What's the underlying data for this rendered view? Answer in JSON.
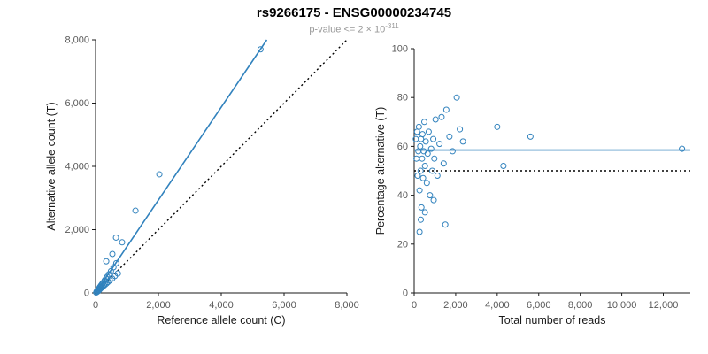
{
  "header": {
    "title": "rs9266175 - ENSG00000234745",
    "subtitle_text": "p-value <= 2 × 10",
    "subtitle_exponent": "-311"
  },
  "colors": {
    "accent_blue": "#3182bd",
    "identity_black": "#000000",
    "subtitle_gray": "#999999"
  },
  "chart_data": [
    {
      "type": "scatter",
      "title": "",
      "xlabel": "Reference allele count (C)",
      "ylabel": "Alternative allele count (T)",
      "xlim": [
        0,
        8000
      ],
      "ylim": [
        0,
        8000
      ],
      "xticks": [
        0,
        2000,
        4000,
        6000,
        8000
      ],
      "yticks": [
        0,
        2000,
        4000,
        6000,
        8000
      ],
      "grid": false,
      "legend": "none",
      "point_color": "#3182bd",
      "points": [
        [
          20,
          15
        ],
        [
          35,
          45
        ],
        [
          50,
          30
        ],
        [
          60,
          80
        ],
        [
          75,
          55
        ],
        [
          85,
          110
        ],
        [
          95,
          70
        ],
        [
          105,
          135
        ],
        [
          115,
          95
        ],
        [
          125,
          170
        ],
        [
          135,
          115
        ],
        [
          145,
          195
        ],
        [
          155,
          135
        ],
        [
          165,
          225
        ],
        [
          175,
          155
        ],
        [
          190,
          260
        ],
        [
          205,
          175
        ],
        [
          220,
          300
        ],
        [
          235,
          205
        ],
        [
          255,
          335
        ],
        [
          270,
          235
        ],
        [
          290,
          395
        ],
        [
          310,
          270
        ],
        [
          330,
          450
        ],
        [
          350,
          305
        ],
        [
          370,
          510
        ],
        [
          395,
          345
        ],
        [
          425,
          590
        ],
        [
          455,
          395
        ],
        [
          490,
          690
        ],
        [
          530,
          455
        ],
        [
          570,
          810
        ],
        [
          615,
          535
        ],
        [
          660,
          940
        ],
        [
          710,
          615
        ],
        [
          340,
          1000
        ],
        [
          535,
          1230
        ],
        [
          650,
          1750
        ],
        [
          845,
          1600
        ],
        [
          1270,
          2600
        ],
        [
          2030,
          3750
        ],
        [
          5250,
          7700
        ]
      ],
      "lines": [
        {
          "name": "fit-line",
          "style": "solid",
          "color": "#3182bd",
          "x1": 0,
          "y1": 0,
          "x2": 5450,
          "y2": 8000
        },
        {
          "name": "identity-line",
          "style": "dotted",
          "color": "#000000",
          "x1": 0,
          "y1": 0,
          "x2": 8000,
          "y2": 8000
        }
      ]
    },
    {
      "type": "scatter",
      "title": "",
      "xlabel": "Total number of reads",
      "ylabel": "Percentage alternative (T)",
      "xlim": [
        0,
        13300
      ],
      "ylim": [
        0,
        100
      ],
      "xticks": [
        0,
        2000,
        4000,
        6000,
        8000,
        10000,
        12000
      ],
      "yticks": [
        0,
        20,
        40,
        60,
        80,
        100
      ],
      "grid": false,
      "legend": "none",
      "point_color": "#3182bd",
      "points": [
        [
          80,
          63
        ],
        [
          110,
          55
        ],
        [
          140,
          66
        ],
        [
          170,
          48
        ],
        [
          200,
          58
        ],
        [
          230,
          68
        ],
        [
          260,
          42
        ],
        [
          290,
          60
        ],
        [
          310,
          50
        ],
        [
          330,
          63
        ],
        [
          350,
          35
        ],
        [
          380,
          55
        ],
        [
          400,
          65
        ],
        [
          430,
          47
        ],
        [
          460,
          58
        ],
        [
          490,
          70
        ],
        [
          520,
          52
        ],
        [
          560,
          62
        ],
        [
          610,
          45
        ],
        [
          650,
          57
        ],
        [
          700,
          66
        ],
        [
          760,
          40
        ],
        [
          820,
          59
        ],
        [
          870,
          50
        ],
        [
          920,
          63
        ],
        [
          970,
          55
        ],
        [
          1030,
          71
        ],
        [
          1120,
          48
        ],
        [
          1220,
          61
        ],
        [
          1320,
          72
        ],
        [
          1420,
          53
        ],
        [
          1500,
          28
        ],
        [
          1550,
          75
        ],
        [
          1700,
          64
        ],
        [
          1850,
          58
        ],
        [
          2050,
          80
        ],
        [
          2200,
          67
        ],
        [
          2350,
          62
        ],
        [
          260,
          25
        ],
        [
          320,
          30
        ],
        [
          520,
          33
        ],
        [
          940,
          38
        ],
        [
          4000,
          68
        ],
        [
          4300,
          52
        ],
        [
          5600,
          64
        ],
        [
          12900,
          59
        ]
      ],
      "lines": [
        {
          "name": "mean-percentage-line",
          "style": "solid",
          "color": "#3182bd",
          "x1": 0,
          "y1": 58.5,
          "x2": 13300,
          "y2": 58.5
        },
        {
          "name": "fifty-percent-line",
          "style": "dotted",
          "color": "#000000",
          "x1": 0,
          "y1": 50,
          "x2": 13300,
          "y2": 50
        }
      ]
    }
  ]
}
